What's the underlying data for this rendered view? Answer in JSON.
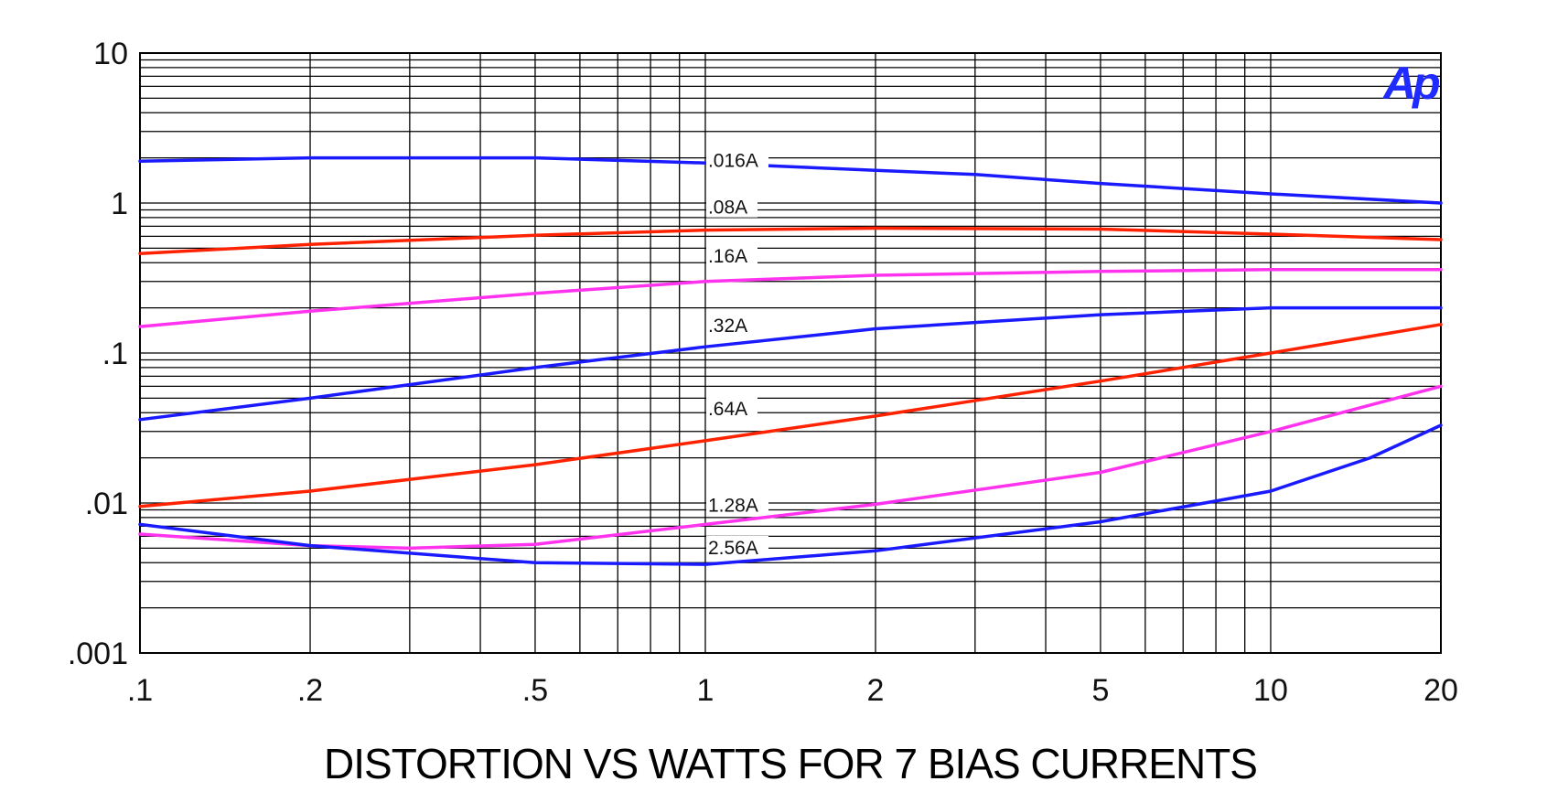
{
  "chart_data": {
    "type": "line",
    "title": "DISTORTION VS WATTS FOR 7 BIAS CURRENTS",
    "xlabel": "",
    "ylabel": "",
    "xscale": "log",
    "yscale": "log",
    "xlim": [
      0.1,
      20
    ],
    "ylim": [
      0.001,
      10
    ],
    "grid": true,
    "logo_text": "Ap",
    "logo_color": "#1f2bff",
    "x_ticks": [
      {
        "value": 0.1,
        "label": ".1"
      },
      {
        "value": 0.2,
        "label": ".2"
      },
      {
        "value": 0.5,
        "label": ".5"
      },
      {
        "value": 1,
        "label": "1"
      },
      {
        "value": 2,
        "label": "2"
      },
      {
        "value": 5,
        "label": "5"
      },
      {
        "value": 10,
        "label": "10"
      },
      {
        "value": 20,
        "label": "20"
      }
    ],
    "y_ticks": [
      {
        "value": 10,
        "label": "10"
      },
      {
        "value": 1,
        "label": "1"
      },
      {
        "value": 0.1,
        "label": ".1"
      },
      {
        "value": 0.01,
        "label": ".01"
      },
      {
        "value": 0.001,
        "label": ".001"
      }
    ],
    "series": [
      {
        "name": ".016A",
        "label_x": 1.0,
        "label_y": 1.95,
        "color": "#1a1aff",
        "x": [
          0.1,
          0.2,
          0.5,
          1,
          2,
          3,
          5,
          10,
          20
        ],
        "y": [
          1.9,
          2.0,
          2.0,
          1.85,
          1.65,
          1.55,
          1.35,
          1.15,
          1.0
        ]
      },
      {
        "name": ".08A",
        "label_x": 1.0,
        "label_y": 0.95,
        "color": "#ff2200",
        "x": [
          0.1,
          0.2,
          0.5,
          1,
          2,
          5,
          10,
          20
        ],
        "y": [
          0.46,
          0.53,
          0.61,
          0.66,
          0.68,
          0.67,
          0.62,
          0.57
        ]
      },
      {
        "name": ".16A",
        "label_x": 1.0,
        "label_y": 0.45,
        "color": "#ff33ee",
        "x": [
          0.1,
          0.2,
          0.5,
          1,
          2,
          5,
          10,
          20
        ],
        "y": [
          0.15,
          0.19,
          0.25,
          0.3,
          0.33,
          0.35,
          0.36,
          0.36
        ]
      },
      {
        "name": ".32A",
        "label_x": 1.0,
        "label_y": 0.155,
        "color": "#1a1aff",
        "x": [
          0.1,
          0.2,
          0.5,
          1,
          2,
          5,
          10,
          20
        ],
        "y": [
          0.036,
          0.05,
          0.08,
          0.11,
          0.145,
          0.18,
          0.2,
          0.2
        ]
      },
      {
        "name": ".64A",
        "label_x": 1.0,
        "label_y": 0.043,
        "color": "#ff2200",
        "x": [
          0.1,
          0.2,
          0.5,
          1,
          2,
          5,
          10,
          20
        ],
        "y": [
          0.0095,
          0.012,
          0.018,
          0.026,
          0.038,
          0.065,
          0.1,
          0.155
        ]
      },
      {
        "name": "1.28A",
        "label_x": 1.0,
        "label_y": 0.0098,
        "color": "#ff33ee",
        "x": [
          0.1,
          0.2,
          0.3,
          0.5,
          1,
          2,
          5,
          10,
          20
        ],
        "y": [
          0.0062,
          0.0052,
          0.005,
          0.0053,
          0.0072,
          0.0098,
          0.016,
          0.03,
          0.06
        ]
      },
      {
        "name": "2.56A",
        "label_x": 1.0,
        "label_y": 0.0051,
        "color": "#1a1aff",
        "x": [
          0.1,
          0.2,
          0.5,
          1,
          2,
          5,
          10,
          15,
          20
        ],
        "y": [
          0.0072,
          0.0052,
          0.004,
          0.0039,
          0.0048,
          0.0075,
          0.012,
          0.02,
          0.033
        ]
      }
    ]
  }
}
